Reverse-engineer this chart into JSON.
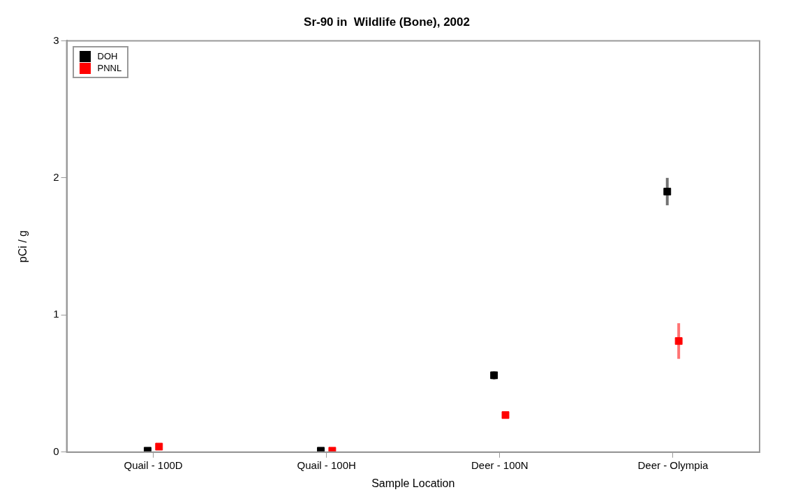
{
  "chart_data": {
    "type": "scatter",
    "title": "Sr-90 in  Wildlife (Bone), 2002",
    "xlabel": "Sample Location",
    "ylabel": "pCi / g",
    "categories": [
      "Quail - 100D",
      "Quail - 100H",
      "Deer - 100N",
      "Deer - Olympia"
    ],
    "series": [
      {
        "name": "DOH",
        "color": "#000000",
        "values": [
          0.01,
          0.01,
          0.56,
          1.9
        ],
        "errors": [
          null,
          null,
          0.03,
          0.1
        ]
      },
      {
        "name": "PNNL",
        "color": "#ff0000",
        "values": [
          0.04,
          0.01,
          0.27,
          0.81
        ],
        "errors": [
          null,
          null,
          0.02,
          0.13
        ]
      }
    ],
    "ylim": [
      0,
      3
    ],
    "yticks": [
      0,
      1,
      2,
      3
    ],
    "grid": false,
    "legend": "top left",
    "marker": "square"
  }
}
